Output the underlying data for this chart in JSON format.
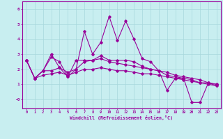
{
  "xlabel": "Windchill (Refroidissement éolien,°C)",
  "background_color": "#c8eef0",
  "grid_color": "#a8d8dc",
  "line_color": "#990099",
  "xlim": [
    -0.5,
    23.5
  ],
  "ylim": [
    -0.6,
    6.5
  ],
  "yticks": [
    0,
    1,
    2,
    3,
    4,
    5,
    6
  ],
  "ytick_labels": [
    "-0",
    "1",
    "2",
    "3",
    "4",
    "5",
    "6"
  ],
  "xticks": [
    0,
    1,
    2,
    3,
    4,
    5,
    6,
    7,
    8,
    9,
    10,
    11,
    12,
    13,
    14,
    15,
    16,
    17,
    18,
    19,
    20,
    21,
    22,
    23
  ],
  "line1_x": [
    0,
    1,
    2,
    3,
    4,
    5,
    6,
    7,
    8,
    9,
    10,
    11,
    12,
    13,
    14,
    15,
    16,
    17,
    18,
    19,
    20,
    21,
    22,
    23
  ],
  "line1_y": [
    2.6,
    1.4,
    1.9,
    3.0,
    2.1,
    1.5,
    2.0,
    4.5,
    3.0,
    3.8,
    5.5,
    3.9,
    5.2,
    4.0,
    2.7,
    2.5,
    1.9,
    0.6,
    1.4,
    1.4,
    -0.2,
    -0.2,
    1.1,
    0.9
  ],
  "line2_x": [
    0,
    1,
    2,
    3,
    4,
    5,
    6,
    7,
    8,
    9,
    10,
    11,
    12,
    13,
    14,
    15,
    16,
    17,
    18,
    19,
    20,
    21,
    22,
    23
  ],
  "line2_y": [
    2.6,
    1.4,
    1.9,
    2.8,
    2.5,
    1.5,
    2.6,
    2.6,
    2.6,
    2.9,
    2.6,
    2.6,
    2.6,
    2.5,
    2.2,
    2.0,
    1.9,
    1.6,
    1.5,
    1.4,
    1.3,
    1.1,
    1.1,
    1.0
  ],
  "line3_x": [
    0,
    1,
    2,
    3,
    4,
    5,
    6,
    7,
    8,
    9,
    10,
    11,
    12,
    13,
    14,
    15,
    16,
    17,
    18,
    19,
    20,
    21,
    22,
    23
  ],
  "line3_y": [
    2.6,
    1.4,
    1.9,
    1.9,
    2.1,
    1.8,
    2.0,
    2.5,
    2.6,
    2.7,
    2.5,
    2.4,
    2.3,
    2.2,
    2.1,
    2.0,
    1.9,
    1.8,
    1.6,
    1.5,
    1.4,
    1.3,
    1.1,
    1.0
  ],
  "line4_x": [
    0,
    1,
    2,
    3,
    4,
    5,
    6,
    7,
    8,
    9,
    10,
    11,
    12,
    13,
    14,
    15,
    16,
    17,
    18,
    19,
    20,
    21,
    22,
    23
  ],
  "line4_y": [
    2.6,
    1.4,
    1.6,
    1.7,
    1.8,
    1.6,
    1.8,
    2.0,
    2.0,
    2.1,
    2.0,
    1.9,
    1.9,
    1.8,
    1.7,
    1.7,
    1.6,
    1.5,
    1.4,
    1.3,
    1.2,
    1.1,
    1.0,
    0.9
  ]
}
